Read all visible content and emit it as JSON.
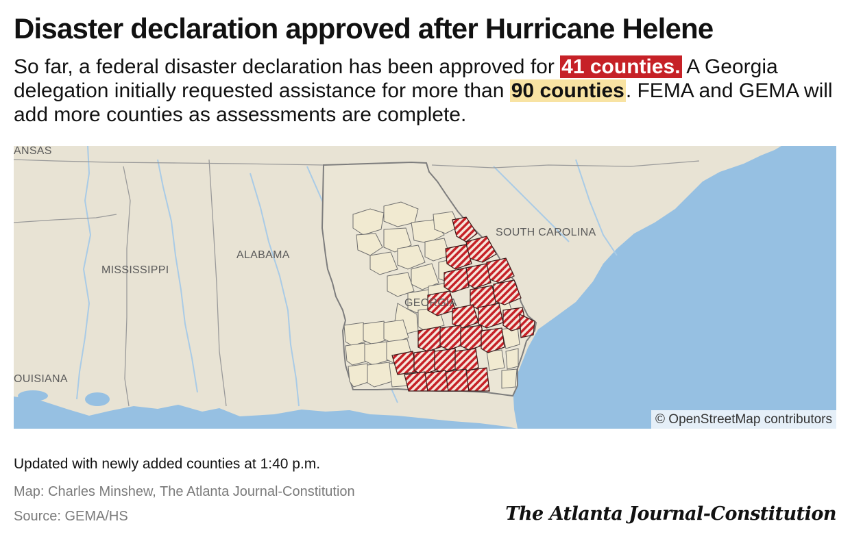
{
  "header": {
    "title": "Disaster declaration approved after Hurricane Helene",
    "dek_part1": "So far, a federal disaster declaration has been approved for ",
    "dek_highlight1": "41 counties.",
    "dek_part2": " A Georgia delegation initially requested assistance for more than ",
    "dek_highlight2": "90 counties",
    "dek_part3": ". FEMA and GEMA will add more counties as assessments are complete."
  },
  "map": {
    "labels": {
      "arkansas": "ANSAS",
      "mississippi": "MISSISSIPPI",
      "alabama": "ALABAMA",
      "georgia": "GEORGIA",
      "south_carolina": "SOUTH CAROLINA",
      "louisiana": "OUISIANA"
    },
    "attribution": "© OpenStreetMap contributors",
    "legend_categories": {
      "approved": "41 counties.",
      "requested": "90 counties"
    },
    "colors": {
      "land": "#e8e3d4",
      "water": "#96c0e2",
      "approved_hatch": "#c62127",
      "requested_fill": "#f1ead1",
      "state_border": "#7d7d7d",
      "river": "#a9cbe6"
    }
  },
  "footer": {
    "note": "Updated with newly added counties at 1:40 p.m.",
    "credit": "Map: Charles Minshew, The Atlanta Journal-Constitution",
    "source": "Source: GEMA/HS",
    "logo": "The Atlanta Journal-Constitution"
  }
}
